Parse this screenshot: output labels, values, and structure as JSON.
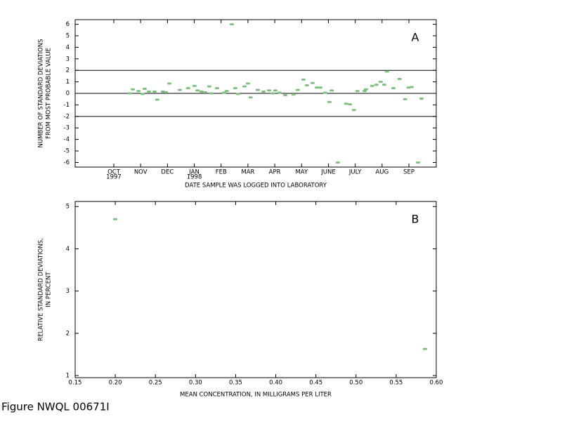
{
  "chart_data": [
    {
      "type": "scatter",
      "panel_label": "A",
      "y_label": [
        "NUMBER OF STANDARD DEVIATIONS",
        "FROM MOST PROBABLE VALUE"
      ],
      "x_label": "DATE SAMPLE WAS LOGGED INTO LABORATORY",
      "xlim": [
        -1.44,
        12.02
      ],
      "ylim": [
        -6.4,
        6.4
      ],
      "xticks": [
        {
          "value": 0,
          "label": "OCT"
        },
        {
          "value": 1,
          "label": "NOV"
        },
        {
          "value": 2,
          "label": "DEC"
        },
        {
          "value": 3,
          "label": "JAN"
        },
        {
          "value": 4,
          "label": "FEB"
        },
        {
          "value": 5,
          "label": "MAR"
        },
        {
          "value": 6,
          "label": "APR"
        },
        {
          "value": 7,
          "label": "MAY"
        },
        {
          "value": 8,
          "label": "JUNE"
        },
        {
          "value": 9,
          "label": "JULY"
        },
        {
          "value": 10,
          "label": "AUG"
        },
        {
          "value": 11,
          "label": "SEP"
        }
      ],
      "year_labels": [
        {
          "value": 0,
          "label": "1997"
        },
        {
          "value": 3,
          "label": "1998"
        }
      ],
      "yticks": [
        -6,
        -5,
        -4,
        -3,
        -2,
        -1,
        0,
        1,
        2,
        3,
        4,
        5,
        6
      ],
      "ref_lines": [
        2,
        0,
        -2
      ],
      "series": [
        {
          "color": "#7fbf7f",
          "x": [
            0.6,
            0.71,
            0.92,
            1.07,
            1.15,
            1.31,
            1.52,
            1.62,
            1.83,
            1.94,
            2.07,
            2.46,
            2.77,
            3.01,
            3.12,
            3.27,
            3.4,
            3.56,
            3.64,
            3.85,
            4.11,
            4.21,
            4.4,
            4.53,
            4.63,
            4.87,
            5.0,
            5.1,
            5.37,
            5.58,
            5.79,
            5.92,
            6.02,
            6.18,
            6.39,
            6.7,
            6.86,
            7.07,
            7.2,
            7.41,
            7.57,
            7.7,
            7.88,
            8.04,
            8.12,
            8.35,
            8.66,
            8.8,
            8.95,
            9.08,
            9.35,
            9.4,
            9.63,
            9.79,
            9.95,
            10.08,
            10.18,
            10.42,
            10.65,
            10.86,
            10.99,
            11.1,
            11.34,
            11.47
          ],
          "values": [
            0.0,
            0.35,
            0.2,
            -0.05,
            0.4,
            0.15,
            0.15,
            -0.55,
            0.15,
            0.1,
            0.85,
            0.3,
            0.45,
            0.65,
            0.25,
            0.15,
            0.1,
            0.6,
            0.0,
            0.45,
            0.05,
            0.2,
            6.0,
            0.45,
            -0.05,
            0.6,
            0.85,
            -0.35,
            0.3,
            0.15,
            0.25,
            0.0,
            0.25,
            0.05,
            -0.15,
            -0.1,
            0.3,
            1.2,
            0.7,
            0.9,
            0.5,
            0.5,
            0.05,
            -0.75,
            0.25,
            -6.0,
            -0.9,
            -0.95,
            -1.45,
            0.2,
            0.2,
            0.35,
            0.65,
            0.75,
            1.0,
            0.75,
            1.9,
            0.45,
            1.25,
            -0.5,
            0.5,
            0.55,
            -6.0,
            -0.45
          ]
        }
      ]
    },
    {
      "type": "scatter",
      "panel_label": "B",
      "y_label": [
        "RELATIVE STANDARD DEVIATIONS,",
        "IN PERCENT"
      ],
      "x_label": "MEAN CONCENTRATION, IN MILLIGRAMS PER LITER",
      "xlim": [
        0.15,
        0.6
      ],
      "ylim": [
        0.95,
        5.12
      ],
      "xticks": [
        0.15,
        {
          "value": 0.2,
          "label": "0.20"
        },
        0.25,
        {
          "value": 0.3,
          "label": "0.30"
        },
        0.35,
        {
          "value": 0.4,
          "label": "0.40"
        },
        0.45,
        {
          "value": 0.5,
          "label": "0.50"
        },
        0.55,
        {
          "value": 0.6,
          "label": "0.60"
        }
      ],
      "yticks": [
        1,
        2,
        3,
        4,
        5
      ],
      "series": [
        {
          "color": "#7fbf7f",
          "x": [
            0.2,
            0.586
          ],
          "values": [
            4.7,
            1.63
          ]
        }
      ]
    }
  ],
  "footer": "Figure NWQL 00671I"
}
